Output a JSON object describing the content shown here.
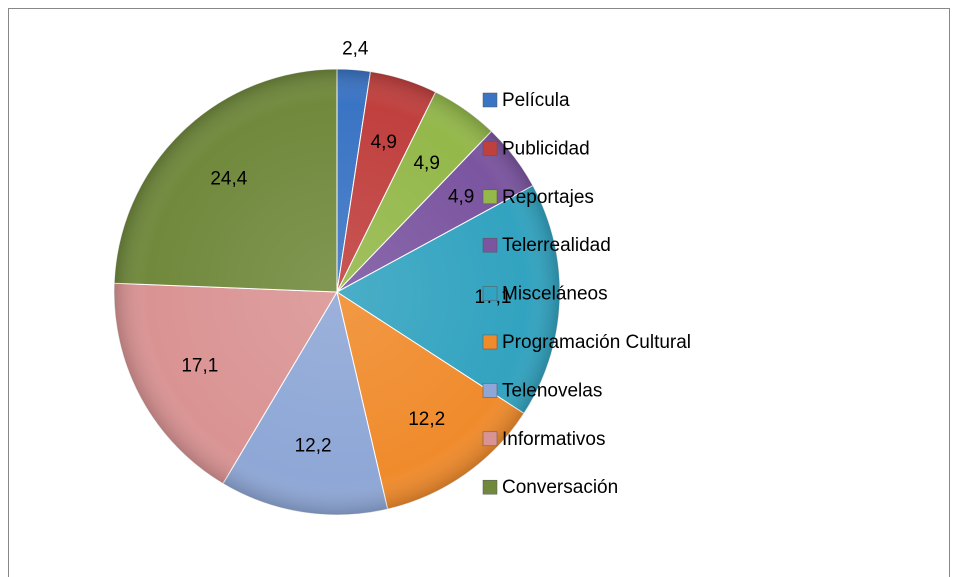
{
  "chart_data": {
    "type": "pie",
    "categories": [
      "Película",
      "Publicidad",
      "Reportajes",
      "Telerrealidad",
      "Misceláneos",
      "Programación Cultural",
      "Telenovelas",
      "Informativos",
      "Conversación"
    ],
    "values": [
      2.4,
      4.9,
      4.9,
      4.9,
      17.1,
      12.2,
      12.2,
      17.1,
      24.4
    ],
    "value_labels": [
      "2,4",
      "4,9",
      "4,9",
      "4,9",
      "17,1",
      "12,2",
      "12,2",
      "17,1",
      "24,4"
    ],
    "colors": [
      "#3a74c4",
      "#c0403e",
      "#94b84a",
      "#7b55a0",
      "#32a3c0",
      "#f08b2c",
      "#8ea7d6",
      "#da9393",
      "#70893c"
    ],
    "legend": "right"
  }
}
